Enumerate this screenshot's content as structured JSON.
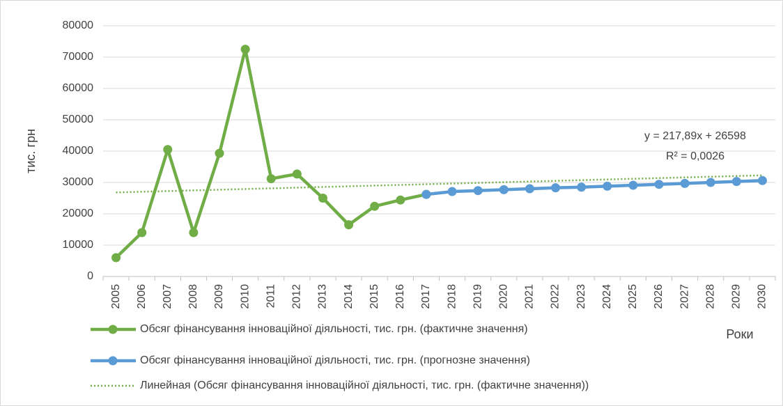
{
  "chart_data": {
    "type": "line",
    "y_label": "тис. грн",
    "x_label": "Роки",
    "categories": [
      "2005",
      "2006",
      "2007",
      "2008",
      "2009",
      "2010",
      "2011",
      "2012",
      "2013",
      "2014",
      "2015",
      "2016",
      "2017",
      "2018",
      "2019",
      "2020",
      "2021",
      "2022",
      "2023",
      "2024",
      "2025",
      "2026",
      "2027",
      "2028",
      "2029",
      "2030"
    ],
    "series": [
      {
        "name": "Обсяг фінансування інноваційної діяльності, тис. грн. (фактичне значення)",
        "color": "#70ad47",
        "style": "solid",
        "markers": true,
        "values": [
          6000,
          14000,
          40500,
          14000,
          39300,
          72500,
          31200,
          32700,
          25000,
          16500,
          22400,
          24400,
          26200,
          null,
          null,
          null,
          null,
          null,
          null,
          null,
          null,
          null,
          null,
          null,
          null,
          null
        ]
      },
      {
        "name": "Обсяг фінансування інноваційної діяльності, тис. грн. (прогнозне значення)",
        "color": "#5b9bd5",
        "style": "solid",
        "markers": true,
        "values": [
          null,
          null,
          null,
          null,
          null,
          null,
          null,
          null,
          null,
          null,
          null,
          null,
          26200,
          27100,
          27400,
          27700,
          28000,
          28300,
          28500,
          28800,
          29100,
          29400,
          29700,
          30000,
          30300,
          30600
        ]
      },
      {
        "name": "Линейная (Обсяг фінансування інноваційної діяльності, тис. грн. (фактичне значення))",
        "color": "#70ad47",
        "style": "dotted",
        "markers": false,
        "values": [
          26816,
          27034,
          27252,
          27470,
          27688,
          27905,
          28123,
          28341,
          28559,
          28777,
          28995,
          29213,
          29431,
          29649,
          29867,
          30085,
          30303,
          30520,
          30738,
          30956,
          31174,
          31392,
          31610,
          31828,
          32046,
          32264
        ]
      }
    ],
    "annotations": [
      "y = 217,89x + 26598",
      "R² = 0,0026"
    ],
    "ylim": [
      0,
      80000
    ],
    "yticks": [
      0,
      10000,
      20000,
      30000,
      40000,
      50000,
      60000,
      70000,
      80000
    ],
    "grid": true
  }
}
